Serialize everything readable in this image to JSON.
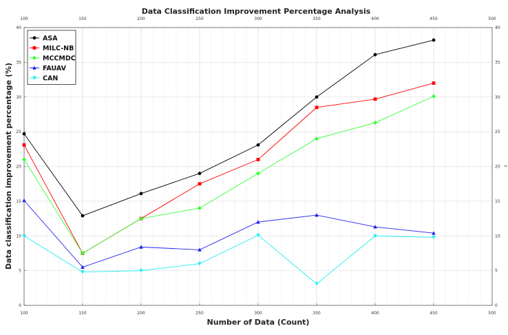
{
  "chart_data": {
    "type": "line",
    "title": "Data Classification Improvement Percentage Analysis",
    "xlabel": "Number of Data (Count)",
    "ylabel": "Data classification improvement percentage (%)",
    "right_axis_label": "z",
    "xlim": [
      100,
      500
    ],
    "ylim": [
      0,
      40
    ],
    "x_ticks": [
      100,
      150,
      200,
      250,
      300,
      350,
      400,
      450,
      500
    ],
    "y_ticks": [
      0,
      5,
      10,
      15,
      20,
      25,
      30,
      35,
      40
    ],
    "x_tick_labels": [
      "100",
      "150",
      "200",
      "250",
      "300",
      "350",
      "400",
      "450",
      "500"
    ],
    "y_tick_labels": [
      "0",
      "5",
      "10",
      "15",
      "20",
      "25",
      "30",
      "35",
      "40"
    ],
    "grid": true,
    "legend_position": "top-left",
    "x": [
      100,
      150,
      200,
      250,
      300,
      350,
      400,
      450
    ],
    "series": [
      {
        "name": "ASA",
        "color": "#000000",
        "marker": "circle",
        "values": [
          24.7,
          12.9,
          16.1,
          19.0,
          23.1,
          30.0,
          36.1,
          38.2
        ]
      },
      {
        "name": "MILC-NB",
        "color": "#ff0000",
        "marker": "square",
        "values": [
          23.1,
          7.5,
          12.5,
          17.5,
          21.0,
          28.5,
          29.7,
          32.0
        ]
      },
      {
        "name": "MCCMDC",
        "color": "#33ff33",
        "marker": "diamond",
        "values": [
          21.0,
          7.5,
          12.5,
          14.0,
          19.0,
          24.0,
          26.3,
          30.1
        ]
      },
      {
        "name": "FAUAV",
        "color": "#2222ee",
        "marker": "triangle",
        "values": [
          15.1,
          5.5,
          8.4,
          8.0,
          12.0,
          13.0,
          11.3,
          10.4
        ]
      },
      {
        "name": "CAN",
        "color": "#22eeee",
        "marker": "triangle-down",
        "values": [
          10.0,
          4.8,
          5.0,
          6.0,
          10.1,
          3.1,
          10.0,
          9.8
        ]
      }
    ]
  }
}
